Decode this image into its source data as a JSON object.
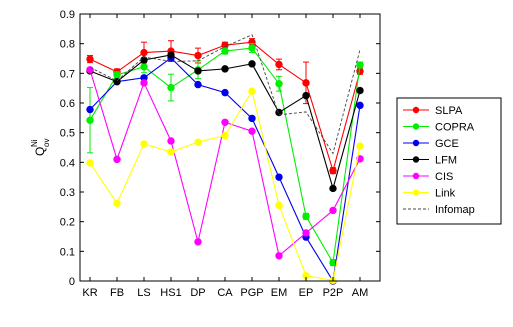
{
  "chart_data": {
    "type": "line",
    "title": "",
    "xlabel": "",
    "ylabel": {
      "base": "Q",
      "sub": "ov",
      "sup": "Ni"
    },
    "ylim": [
      0,
      0.9
    ],
    "yticks": [
      "0",
      "0.1",
      "0.2",
      "0.3",
      "0.4",
      "0.5",
      "0.6",
      "0.7",
      "0.8",
      "0.9"
    ],
    "categories": [
      "KR",
      "FB",
      "LS",
      "HS1",
      "DP",
      "CA",
      "PGP",
      "EM",
      "EP",
      "P2P",
      "AM"
    ],
    "grid": false,
    "legend_position": "right",
    "series": [
      {
        "name": "SLPA",
        "color": "#ff0000",
        "marker": "circle",
        "values": [
          0.748,
          0.705,
          0.77,
          0.775,
          0.76,
          0.795,
          0.805,
          0.73,
          0.668,
          0.372,
          0.707
        ],
        "errors": [
          0.012,
          0.01,
          0.035,
          0.035,
          0.025,
          0.01,
          0.012,
          0.018,
          0.07,
          0.01,
          0.01
        ]
      },
      {
        "name": "COPRA",
        "color": "#00ee00",
        "marker": "circle",
        "values": [
          0.542,
          0.695,
          0.722,
          0.652,
          0.712,
          0.775,
          0.785,
          0.665,
          0.218,
          0.062,
          0.728
        ],
        "errors": [
          0.11,
          0.01,
          0.02,
          0.045,
          0.03,
          0.01,
          0.015,
          0.025,
          0.01,
          0.01,
          0.01
        ]
      },
      {
        "name": "GCE",
        "color": "#0000ee",
        "marker": "circle",
        "values": [
          0.578,
          0.672,
          0.685,
          0.752,
          0.662,
          0.635,
          0.548,
          0.35,
          0.148,
          0.0,
          0.592
        ]
      },
      {
        "name": "LFM",
        "color": "#000000",
        "marker": "circle",
        "values": [
          0.708,
          0.672,
          0.745,
          0.762,
          0.708,
          0.715,
          0.732,
          0.568,
          0.625,
          0.312,
          0.642
        ]
      },
      {
        "name": "CIS",
        "color": "#ff00ff",
        "marker": "circle",
        "values": [
          0.712,
          0.41,
          0.668,
          0.472,
          0.132,
          0.535,
          0.505,
          0.085,
          0.162,
          0.238,
          0.412
        ]
      },
      {
        "name": "Link",
        "color": "#ffff00",
        "marker": "circle",
        "values": [
          0.398,
          0.262,
          0.462,
          0.435,
          0.468,
          0.49,
          0.64,
          0.255,
          0.018,
          0.002,
          0.455
        ]
      },
      {
        "name": "Infomap",
        "color": "#444444",
        "marker": "none",
        "dashed": true,
        "values": [
          0.72,
          0.675,
          0.755,
          0.74,
          0.742,
          0.79,
          0.83,
          0.56,
          0.57,
          0.43,
          0.78
        ]
      }
    ]
  }
}
